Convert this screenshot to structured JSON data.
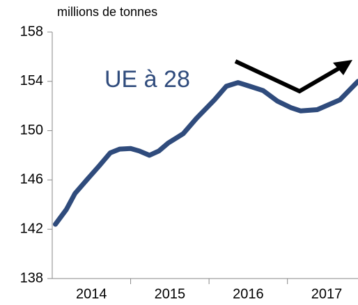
{
  "chart_data": {
    "type": "line",
    "y_axis_label": "millions de tonnes",
    "annotation": "UE à 28",
    "x": [
      2014.04,
      2014.18,
      2014.29,
      2014.44,
      2014.6,
      2014.74,
      2014.86,
      2015.0,
      2015.11,
      2015.24,
      2015.36,
      2015.48,
      2015.67,
      2015.84,
      2016.07,
      2016.22,
      2016.37,
      2016.52,
      2016.69,
      2016.87,
      2017.05,
      2017.17,
      2017.38,
      2017.67,
      2017.9
    ],
    "series": [
      {
        "name": "UE à 28",
        "color": "#2f4b7c",
        "values": [
          142.4,
          143.6,
          144.9,
          146.0,
          147.15,
          148.2,
          148.5,
          148.55,
          148.35,
          148.0,
          148.35,
          149.0,
          149.75,
          151.0,
          152.5,
          153.6,
          153.9,
          153.6,
          153.25,
          152.4,
          151.85,
          151.6,
          151.7,
          152.5,
          154.0
        ]
      }
    ],
    "xlim": [
      2014,
      2017.9
    ],
    "xticks": [
      {
        "value": 2014.5,
        "label": "2014"
      },
      {
        "value": 2015.5,
        "label": "2015"
      },
      {
        "value": 2016.5,
        "label": "2016"
      },
      {
        "value": 2017.5,
        "label": "2017"
      }
    ],
    "xtick_marks": [
      2015,
      2016,
      2017
    ],
    "ylim": [
      138,
      158
    ],
    "yticks": [
      138,
      142,
      146,
      150,
      154,
      158
    ],
    "grid": false
  }
}
